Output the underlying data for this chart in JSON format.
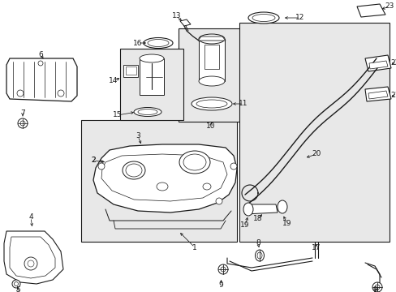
{
  "bg_color": "#ffffff",
  "line_color": "#1a1a1a",
  "gray_fill": "#e8e8e8",
  "font_size": 6.5,
  "fig_width": 4.89,
  "fig_height": 3.6,
  "dpi": 100
}
